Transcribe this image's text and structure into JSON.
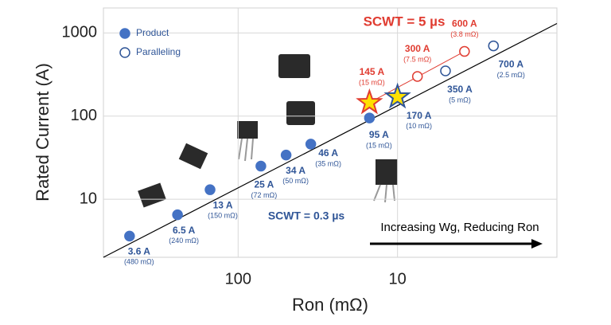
{
  "chart_data": {
    "type": "scatter",
    "x_label": "Ron (mΩ)",
    "y_label": "Rated Current (A)",
    "log_x": true,
    "log_y": true,
    "xlim": [
      700,
      1
    ],
    "ylim": [
      2,
      2000
    ],
    "xticks": [
      100,
      10
    ],
    "yticks": [
      10,
      100,
      1000
    ],
    "grid": true,
    "legend": "upper left",
    "series": [
      {
        "name": "Product",
        "marker": "filled",
        "color": "#4472c4",
        "x": [
          480,
          240,
          150,
          72,
          50,
          35,
          15
        ],
        "values": [
          3.6,
          6.5,
          13,
          25,
          34,
          46,
          95
        ],
        "value_labels": [
          "3.6 A",
          "6.5 A",
          "13 A",
          "25 A",
          "34 A",
          "46 A",
          "95 A"
        ],
        "x_labels": [
          "(480 mΩ)",
          "(240 mΩ)",
          "(150 mΩ)",
          "(72 mΩ)",
          "(50 mΩ)",
          "(35 mΩ)",
          "(15 mΩ)"
        ]
      },
      {
        "name": "Paralleling",
        "marker": "open",
        "color": "#2f5597",
        "colors": [
          "#e03c31",
          "#e03c31",
          "#2f5597",
          "#2f5597"
        ],
        "x": [
          7.5,
          3.8,
          5,
          2.5
        ],
        "values": [
          300,
          600,
          350,
          700
        ],
        "value_labels": [
          "300 A",
          "600 A",
          "350 A",
          "700 A"
        ],
        "x_labels": [
          "(7.5 mΩ)",
          "(3.8 mΩ)",
          "(5 mΩ)",
          "(2.5 mΩ)"
        ]
      }
    ],
    "stars": {
      "x": [
        15,
        10
      ],
      "values": [
        145,
        170
      ],
      "value_labels": [
        "145 A",
        "170 A"
      ],
      "x_labels": [
        "(15 mΩ)",
        "(10 mΩ)"
      ],
      "colors": [
        "#e03c31",
        "#2f5597"
      ]
    },
    "lines": [
      {
        "color": "#000000",
        "x": [
          700,
          1
        ],
        "values": [
          2,
          1300
        ]
      },
      {
        "color": "#e03c31",
        "x": [
          15,
          3.8
        ],
        "values": [
          145,
          600
        ]
      }
    ],
    "annotations": [
      {
        "text": "SCWT = 5 µs",
        "color": "#e03c31"
      },
      {
        "text": "SCWT = 0.3 µs",
        "color": "#2f5597"
      },
      {
        "text": "Increasing Wg, Reducing Ron",
        "color": "#000000"
      }
    ]
  }
}
